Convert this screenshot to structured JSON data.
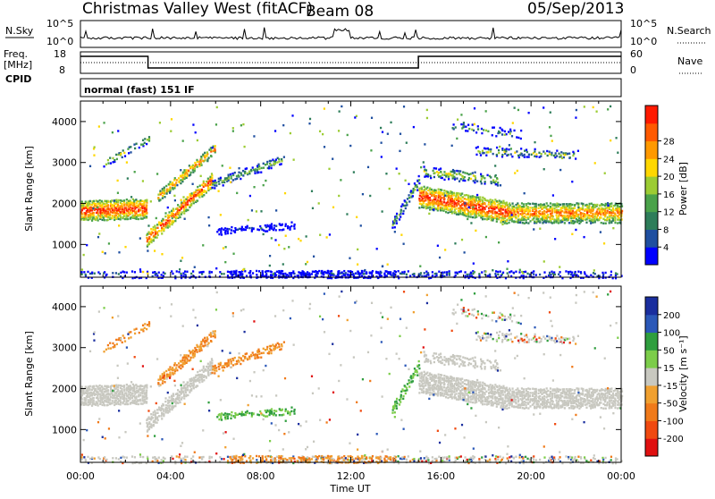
{
  "header": {
    "title": "Christmas Valley West (fitACF)",
    "beam": "Beam 08",
    "date": "05/Sep/2013"
  },
  "panels": {
    "nsky": {
      "label": "N.Sky",
      "ticks_left": [
        "10^5",
        "10^0"
      ],
      "ticks_right": [
        "10^5",
        "10^0"
      ],
      "right_label": "N.Search"
    },
    "freq": {
      "label_line1": "Freq.",
      "label_line2": "[MHz]",
      "ticks_left": [
        "18",
        "8"
      ],
      "ticks_right": [
        "60",
        "0"
      ],
      "right_label": "Nave"
    },
    "cpid": {
      "label": "CPID",
      "text": "normal (fast) 151 IF"
    }
  },
  "colors": {
    "power": [
      "#0000ff",
      "#1f4fa0",
      "#2e7d5a",
      "#4aa24a",
      "#9ccc33",
      "#ffd700",
      "#ff9900",
      "#ff5a00",
      "#ff1a00"
    ],
    "velocity": [
      "#1a2e9e",
      "#2b58b8",
      "#2f9e3e",
      "#7ccd4a",
      "#c8c8c0",
      "#f0a030",
      "#f07a1a",
      "#f04a10",
      "#e01010"
    ],
    "ground": "#c8c8c0"
  },
  "chart_data": [
    {
      "type": "heatmap",
      "name_hint": "power",
      "ylabel": "Slant Range [km]",
      "yticks": [
        1000,
        2000,
        3000,
        4000
      ],
      "ylim": [
        200,
        4500
      ],
      "xlim": [
        0,
        24
      ],
      "colorbar": {
        "label": "Power [dB]",
        "ticks": [
          4,
          8,
          12,
          16,
          20,
          24,
          28
        ]
      }
    },
    {
      "type": "heatmap",
      "name_hint": "velocity",
      "ylabel": "Slant Range [km]",
      "yticks": [
        1000,
        2000,
        3000,
        4000
      ],
      "ylim": [
        200,
        4500
      ],
      "xlim": [
        0,
        24
      ],
      "xlabel": "Time UT",
      "xticks": [
        "00:00",
        "04:00",
        "08:00",
        "12:00",
        "16:00",
        "20:00",
        "00:00"
      ],
      "colorbar": {
        "label": "Velocity [m s⁻¹]",
        "ticks": [
          200,
          100,
          50,
          15,
          -15,
          -50,
          -100,
          -200
        ]
      }
    }
  ]
}
